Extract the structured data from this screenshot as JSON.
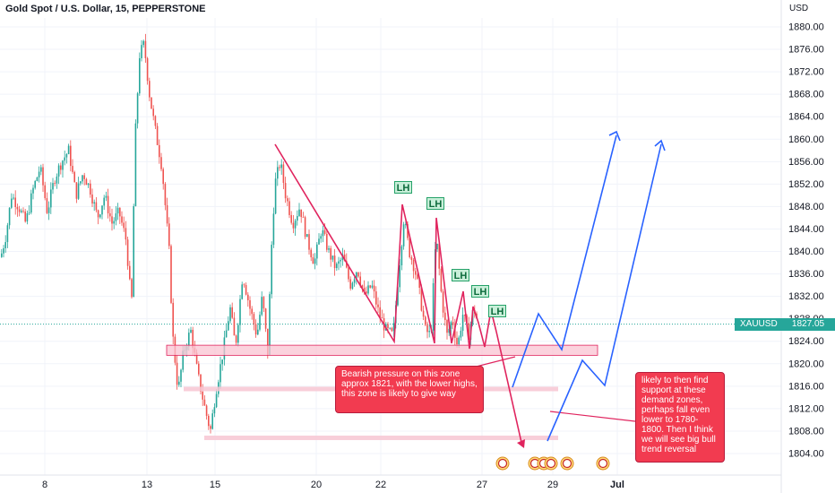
{
  "header": {
    "title": "Gold Spot / U.S. Dollar, 15, PEPPERSTONE",
    "currency": "USD"
  },
  "price_tag": {
    "symbol": "XAUUSD",
    "price": "1827.05"
  },
  "colors": {
    "up": "#26a69a",
    "down": "#ef5350",
    "pattern": "#e0245e",
    "projection": "#2962ff",
    "zone": "#f7c6d2",
    "annotation": "#f23b50"
  },
  "chart_data": {
    "type": "candlestick",
    "yaxis_ticks": [
      1880,
      1876,
      1872,
      1868,
      1864,
      1860,
      1856,
      1852,
      1848,
      1844,
      1840,
      1836,
      1832,
      1828,
      1824,
      1820,
      1816,
      1812,
      1808,
      1804
    ],
    "xaxis_ticks": [
      "8",
      "13",
      "15",
      "20",
      "22",
      "27",
      "29",
      "Jul"
    ],
    "ylim": [
      1801,
      1881.5
    ],
    "current_price": 1827.05,
    "approx_close_path": [
      {
        "t": 0,
        "p": 1839
      },
      {
        "t": 6,
        "p": 1843
      },
      {
        "t": 12,
        "p": 1850
      },
      {
        "t": 20,
        "p": 1848
      },
      {
        "t": 28,
        "p": 1845
      },
      {
        "t": 36,
        "p": 1851
      },
      {
        "t": 44,
        "p": 1855
      },
      {
        "t": 52,
        "p": 1847
      },
      {
        "t": 60,
        "p": 1853
      },
      {
        "t": 68,
        "p": 1856
      },
      {
        "t": 76,
        "p": 1858
      },
      {
        "t": 84,
        "p": 1850
      },
      {
        "t": 92,
        "p": 1854
      },
      {
        "t": 100,
        "p": 1851
      },
      {
        "t": 108,
        "p": 1846
      },
      {
        "t": 116,
        "p": 1850
      },
      {
        "t": 124,
        "p": 1845
      },
      {
        "t": 132,
        "p": 1847
      },
      {
        "t": 140,
        "p": 1842
      },
      {
        "t": 146,
        "p": 1830
      },
      {
        "t": 150,
        "p": 1860
      },
      {
        "t": 155,
        "p": 1875
      },
      {
        "t": 160,
        "p": 1877
      },
      {
        "t": 166,
        "p": 1868
      },
      {
        "t": 172,
        "p": 1862
      },
      {
        "t": 180,
        "p": 1855
      },
      {
        "t": 188,
        "p": 1840
      },
      {
        "t": 192,
        "p": 1825
      },
      {
        "t": 198,
        "p": 1815
      },
      {
        "t": 204,
        "p": 1822
      },
      {
        "t": 212,
        "p": 1826
      },
      {
        "t": 220,
        "p": 1818
      },
      {
        "t": 228,
        "p": 1812
      },
      {
        "t": 234,
        "p": 1808
      },
      {
        "t": 240,
        "p": 1815
      },
      {
        "t": 248,
        "p": 1822
      },
      {
        "t": 256,
        "p": 1830
      },
      {
        "t": 262,
        "p": 1823
      },
      {
        "t": 270,
        "p": 1836
      },
      {
        "t": 278,
        "p": 1830
      },
      {
        "t": 286,
        "p": 1825
      },
      {
        "t": 292,
        "p": 1832
      },
      {
        "t": 298,
        "p": 1822
      },
      {
        "t": 302,
        "p": 1840
      },
      {
        "t": 306,
        "p": 1852
      },
      {
        "t": 312,
        "p": 1856
      },
      {
        "t": 318,
        "p": 1850
      },
      {
        "t": 326,
        "p": 1845
      },
      {
        "t": 334,
        "p": 1848
      },
      {
        "t": 342,
        "p": 1842
      },
      {
        "t": 350,
        "p": 1838
      },
      {
        "t": 358,
        "p": 1844
      },
      {
        "t": 366,
        "p": 1840
      },
      {
        "t": 374,
        "p": 1837
      },
      {
        "t": 382,
        "p": 1839
      },
      {
        "t": 390,
        "p": 1834
      },
      {
        "t": 398,
        "p": 1837
      },
      {
        "t": 406,
        "p": 1832
      },
      {
        "t": 414,
        "p": 1834
      },
      {
        "t": 422,
        "p": 1829
      },
      {
        "t": 430,
        "p": 1826
      },
      {
        "t": 438,
        "p": 1825
      },
      {
        "t": 444,
        "p": 1836
      },
      {
        "t": 450,
        "p": 1846
      },
      {
        "t": 456,
        "p": 1840
      },
      {
        "t": 462,
        "p": 1837
      },
      {
        "t": 468,
        "p": 1832
      },
      {
        "t": 474,
        "p": 1826
      },
      {
        "t": 480,
        "p": 1825
      },
      {
        "t": 486,
        "p": 1843
      },
      {
        "t": 492,
        "p": 1832
      },
      {
        "t": 498,
        "p": 1825
      },
      {
        "t": 504,
        "p": 1828
      },
      {
        "t": 510,
        "p": 1823
      },
      {
        "t": 516,
        "p": 1829
      },
      {
        "t": 522,
        "p": 1825
      },
      {
        "t": 528,
        "p": 1830
      },
      {
        "t": 533,
        "p": 1827
      }
    ],
    "zones": [
      {
        "label": "main",
        "y": [
          1821.5,
          1823.3
        ]
      },
      {
        "label": "demand-1",
        "y": [
          1815.2,
          1815.9
        ]
      },
      {
        "label": "demand-2",
        "y": [
          1806.5,
          1807.2
        ]
      }
    ],
    "lower_high_labels": [
      "LH",
      "LH",
      "LH",
      "LH",
      "LH"
    ],
    "annotations": [
      "Bearish pressure on this zone approx 1821, with the lower highs, this zone is likely to give way",
      "likely to then find support at these demand zones, perhaps fall even lower to 1780-1800. Then I think we will see big bull trend reversal"
    ]
  }
}
